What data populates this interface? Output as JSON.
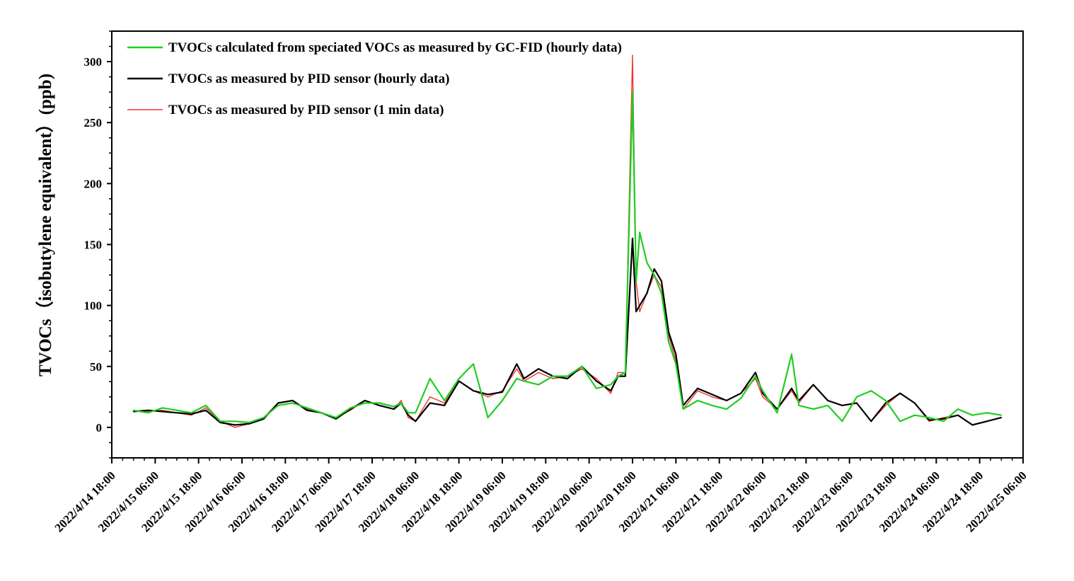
{
  "chart_data": {
    "type": "line",
    "title": "",
    "xlabel": "",
    "ylabel": "TVOCs（isobutylene equivalent）(ppb)",
    "ylim": [
      -25,
      325
    ],
    "xlim": [
      "2022/4/14 18:00",
      "2022/4/25 06:00"
    ],
    "y_ticks": [
      0,
      50,
      100,
      150,
      200,
      250,
      300
    ],
    "x_ticks": [
      "2022/4/14 18:00",
      "2022/4/15 06:00",
      "2022/4/15 18:00",
      "2022/4/16 06:00",
      "2022/4/16 18:00",
      "2022/4/17 06:00",
      "2022/4/17 18:00",
      "2022/4/18 06:00",
      "2022/4/18 18:00",
      "2022/4/19 06:00",
      "2022/4/19 18:00",
      "2022/4/20 06:00",
      "2022/4/20 18:00",
      "2022/4/21 06:00",
      "2022/4/21 18:00",
      "2022/4/22 06:00",
      "2022/4/22 18:00",
      "2022/4/23 06:00",
      "2022/4/23 18:00",
      "2022/4/24 06:00",
      "2022/4/24 18:00",
      "2022/4/25 06:00"
    ],
    "legend_position": "top-left",
    "grid": false,
    "series": [
      {
        "name": "TVOCs as measured by PID sensor (1 min data)",
        "color": "#ee3333",
        "x": [
          "2022/4/15 00:00",
          "2022/4/15 04:00",
          "2022/4/15 08:00",
          "2022/4/15 12:00",
          "2022/4/15 16:00",
          "2022/4/15 20:00",
          "2022/4/16 00:00",
          "2022/4/16 04:00",
          "2022/4/16 08:00",
          "2022/4/16 12:00",
          "2022/4/16 16:00",
          "2022/4/16 20:00",
          "2022/4/17 00:00",
          "2022/4/17 04:00",
          "2022/4/17 08:00",
          "2022/4/17 12:00",
          "2022/4/17 16:00",
          "2022/4/17 20:00",
          "2022/4/18 00:00",
          "2022/4/18 02:00",
          "2022/4/18 04:00",
          "2022/4/18 06:00",
          "2022/4/18 10:00",
          "2022/4/18 14:00",
          "2022/4/18 18:00",
          "2022/4/18 22:00",
          "2022/4/19 02:00",
          "2022/4/19 06:00",
          "2022/4/19 10:00",
          "2022/4/19 12:00",
          "2022/4/19 16:00",
          "2022/4/19 20:00",
          "2022/4/20 00:00",
          "2022/4/20 04:00",
          "2022/4/20 08:00",
          "2022/4/20 12:00",
          "2022/4/20 14:00",
          "2022/4/20 16:00",
          "2022/4/20 18:00",
          "2022/4/20 19:00",
          "2022/4/20 20:00",
          "2022/4/20 22:00",
          "2022/4/21 00:00",
          "2022/4/21 02:00",
          "2022/4/21 04:00",
          "2022/4/21 06:00",
          "2022/4/21 08:00",
          "2022/4/21 12:00",
          "2022/4/21 16:00",
          "2022/4/21 20:00",
          "2022/4/22 00:00",
          "2022/4/22 04:00",
          "2022/4/22 06:00",
          "2022/4/22 10:00",
          "2022/4/22 14:00",
          "2022/4/22 16:00",
          "2022/4/22 20:00",
          "2022/4/23 00:00",
          "2022/4/23 04:00",
          "2022/4/23 08:00",
          "2022/4/23 12:00",
          "2022/4/23 16:00",
          "2022/4/23 20:00",
          "2022/4/24 00:00",
          "2022/4/24 04:00",
          "2022/4/24 08:00",
          "2022/4/24 12:00",
          "2022/4/24 16:00",
          "2022/4/24 20:00",
          "2022/4/25 00:00"
        ],
        "values": [
          14,
          13,
          14,
          12,
          10,
          16,
          5,
          0,
          3,
          8,
          20,
          22,
          15,
          12,
          8,
          14,
          22,
          18,
          15,
          22,
          8,
          5,
          25,
          20,
          38,
          30,
          25,
          30,
          48,
          38,
          45,
          40,
          42,
          48,
          40,
          28,
          45,
          45,
          305,
          120,
          95,
          110,
          125,
          115,
          75,
          55,
          15,
          30,
          25,
          22,
          28,
          40,
          25,
          15,
          30,
          20,
          35,
          22,
          18,
          20,
          5,
          18,
          28,
          20,
          5,
          8,
          10,
          2,
          5,
          8
        ]
      },
      {
        "name": "TVOCs as measured by PID sensor (hourly data)",
        "color": "#000000",
        "x": [
          "2022/4/15 00:00",
          "2022/4/15 04:00",
          "2022/4/15 08:00",
          "2022/4/15 12:00",
          "2022/4/15 16:00",
          "2022/4/15 20:00",
          "2022/4/16 00:00",
          "2022/4/16 04:00",
          "2022/4/16 08:00",
          "2022/4/16 12:00",
          "2022/4/16 16:00",
          "2022/4/16 20:00",
          "2022/4/17 00:00",
          "2022/4/17 04:00",
          "2022/4/17 08:00",
          "2022/4/17 12:00",
          "2022/4/17 16:00",
          "2022/4/17 20:00",
          "2022/4/18 00:00",
          "2022/4/18 02:00",
          "2022/4/18 04:00",
          "2022/4/18 06:00",
          "2022/4/18 10:00",
          "2022/4/18 14:00",
          "2022/4/18 18:00",
          "2022/4/18 22:00",
          "2022/4/19 02:00",
          "2022/4/19 06:00",
          "2022/4/19 10:00",
          "2022/4/19 12:00",
          "2022/4/19 16:00",
          "2022/4/19 20:00",
          "2022/4/20 00:00",
          "2022/4/20 04:00",
          "2022/4/20 08:00",
          "2022/4/20 12:00",
          "2022/4/20 14:00",
          "2022/4/20 16:00",
          "2022/4/20 18:00",
          "2022/4/20 19:00",
          "2022/4/20 20:00",
          "2022/4/20 22:00",
          "2022/4/21 00:00",
          "2022/4/21 02:00",
          "2022/4/21 04:00",
          "2022/4/21 06:00",
          "2022/4/21 08:00",
          "2022/4/21 12:00",
          "2022/4/21 16:00",
          "2022/4/21 20:00",
          "2022/4/22 00:00",
          "2022/4/22 04:00",
          "2022/4/22 06:00",
          "2022/4/22 10:00",
          "2022/4/22 14:00",
          "2022/4/22 16:00",
          "2022/4/22 20:00",
          "2022/4/23 00:00",
          "2022/4/23 04:00",
          "2022/4/23 08:00",
          "2022/4/23 12:00",
          "2022/4/23 16:00",
          "2022/4/23 20:00",
          "2022/4/24 00:00",
          "2022/4/24 04:00",
          "2022/4/24 08:00",
          "2022/4/24 12:00",
          "2022/4/24 16:00",
          "2022/4/24 20:00",
          "2022/4/25 00:00"
        ],
        "values": [
          13,
          14,
          13,
          12,
          11,
          14,
          4,
          2,
          3,
          7,
          20,
          22,
          14,
          12,
          7,
          15,
          22,
          18,
          15,
          20,
          10,
          5,
          20,
          18,
          38,
          30,
          27,
          29,
          52,
          40,
          48,
          42,
          40,
          50,
          38,
          30,
          42,
          42,
          155,
          95,
          100,
          110,
          130,
          120,
          78,
          60,
          18,
          32,
          27,
          22,
          28,
          45,
          28,
          15,
          32,
          22,
          35,
          22,
          18,
          20,
          5,
          20,
          28,
          20,
          6,
          7,
          10,
          2,
          5,
          8
        ]
      },
      {
        "name": "TVOCs calculated from speciated VOCs as measured by GC-FID (hourly data)",
        "color": "#22cc22",
        "x": [
          "2022/4/15 00:00",
          "2022/4/15 04:00",
          "2022/4/15 08:00",
          "2022/4/15 12:00",
          "2022/4/15 16:00",
          "2022/4/15 20:00",
          "2022/4/16 00:00",
          "2022/4/16 04:00",
          "2022/4/16 08:00",
          "2022/4/16 12:00",
          "2022/4/16 16:00",
          "2022/4/16 20:00",
          "2022/4/17 00:00",
          "2022/4/17 04:00",
          "2022/4/17 08:00",
          "2022/4/17 12:00",
          "2022/4/17 16:00",
          "2022/4/17 20:00",
          "2022/4/18 00:00",
          "2022/4/18 02:00",
          "2022/4/18 04:00",
          "2022/4/18 06:00",
          "2022/4/18 10:00",
          "2022/4/18 14:00",
          "2022/4/18 18:00",
          "2022/4/18 22:00",
          "2022/4/19 02:00",
          "2022/4/19 06:00",
          "2022/4/19 10:00",
          "2022/4/19 12:00",
          "2022/4/19 16:00",
          "2022/4/19 20:00",
          "2022/4/20 00:00",
          "2022/4/20 04:00",
          "2022/4/20 08:00",
          "2022/4/20 12:00",
          "2022/4/20 14:00",
          "2022/4/20 16:00",
          "2022/4/20 18:00",
          "2022/4/20 19:00",
          "2022/4/20 20:00",
          "2022/4/20 22:00",
          "2022/4/21 00:00",
          "2022/4/21 02:00",
          "2022/4/21 04:00",
          "2022/4/21 06:00",
          "2022/4/21 08:00",
          "2022/4/21 12:00",
          "2022/4/21 16:00",
          "2022/4/21 20:00",
          "2022/4/22 00:00",
          "2022/4/22 04:00",
          "2022/4/22 06:00",
          "2022/4/22 10:00",
          "2022/4/22 14:00",
          "2022/4/22 16:00",
          "2022/4/22 20:00",
          "2022/4/23 00:00",
          "2022/4/23 04:00",
          "2022/4/23 08:00",
          "2022/4/23 12:00",
          "2022/4/23 16:00",
          "2022/4/23 20:00",
          "2022/4/24 00:00",
          "2022/4/24 04:00",
          "2022/4/24 08:00",
          "2022/4/24 12:00",
          "2022/4/24 16:00",
          "2022/4/24 20:00",
          "2022/4/25 00:00"
        ],
        "values": [
          14,
          12,
          16,
          14,
          12,
          18,
          5,
          5,
          4,
          8,
          18,
          20,
          16,
          12,
          8,
          16,
          20,
          20,
          17,
          20,
          12,
          12,
          40,
          22,
          40,
          52,
          8,
          22,
          40,
          38,
          35,
          42,
          42,
          50,
          32,
          35,
          42,
          45,
          275,
          120,
          160,
          135,
          125,
          110,
          70,
          52,
          15,
          22,
          18,
          15,
          24,
          42,
          30,
          12,
          60,
          18,
          15,
          18,
          5,
          25,
          30,
          22,
          5,
          10,
          8,
          5,
          15,
          10,
          12,
          10
        ]
      }
    ]
  }
}
